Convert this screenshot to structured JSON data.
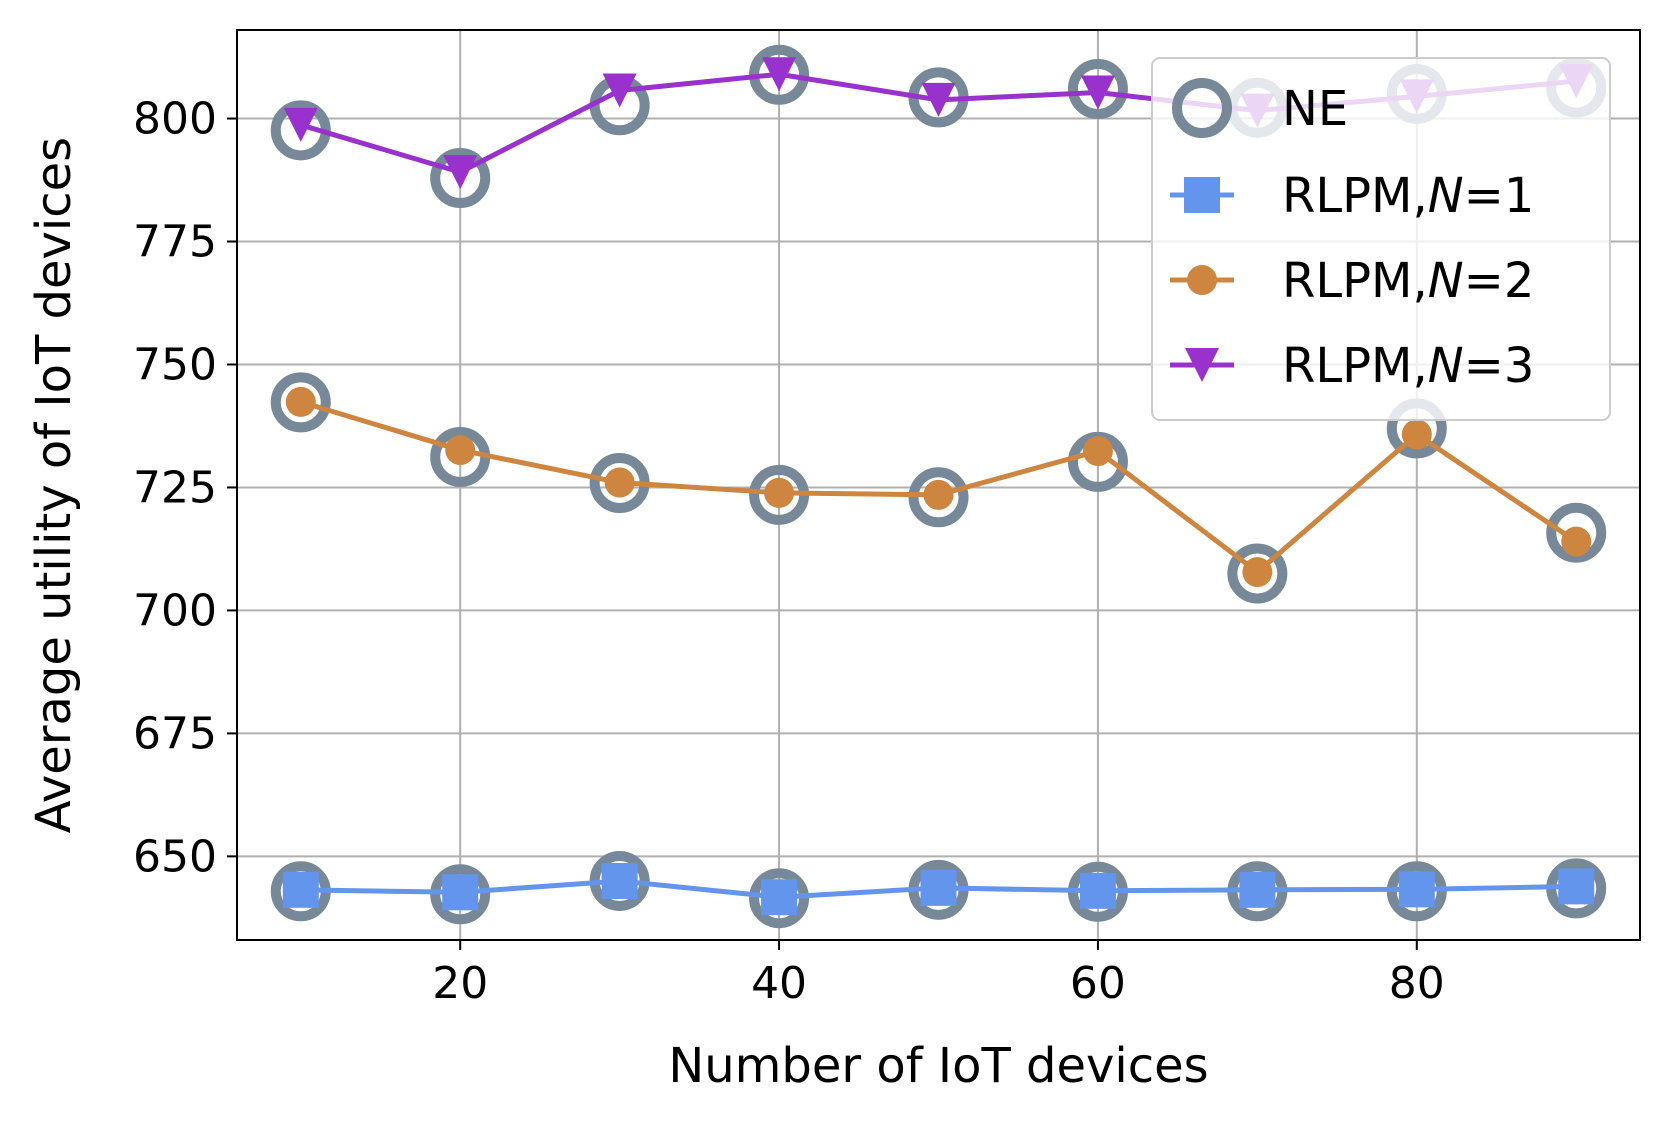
{
  "chart_data": {
    "type": "line",
    "xlabel": "Number of IoT devices",
    "ylabel": "Average utility of IoT devices",
    "xlim": [
      6,
      94
    ],
    "ylim": [
      633,
      818
    ],
    "xticks": [
      20,
      40,
      60,
      80
    ],
    "yticks": [
      650,
      675,
      700,
      725,
      750,
      775,
      800
    ],
    "grid": true,
    "legend_position": "upper right",
    "x": [
      10,
      20,
      30,
      40,
      50,
      60,
      70,
      80,
      90
    ],
    "series": [
      {
        "name": "NE",
        "marker": "hollow-circle",
        "line": false,
        "color": "#778899",
        "groups": [
          [
            642.9,
            642.3,
            645.0,
            641.5,
            643.2,
            642.8,
            642.9,
            642.9,
            643.5
          ],
          [
            742.3,
            731.2,
            725.9,
            723.5,
            723.0,
            730.2,
            707.5,
            737.0,
            715.8
          ],
          [
            797.6,
            787.9,
            802.7,
            808.9,
            804.3,
            806.0,
            802.2,
            805.0,
            806.3
          ]
        ]
      },
      {
        "name": "RLPM,N=1",
        "legend_prefix": "RLPM,",
        "legend_var": "N",
        "legend_suffix": "=1",
        "marker": "square",
        "color": "#6495ED",
        "values": [
          643.2,
          642.7,
          645.0,
          641.7,
          643.6,
          643.0,
          643.2,
          643.3,
          643.9
        ]
      },
      {
        "name": "RLPM,N=2",
        "legend_prefix": "RLPM,",
        "legend_var": "N",
        "legend_suffix": "=2",
        "marker": "circle",
        "color": "#CD853F",
        "values": [
          742.4,
          732.6,
          726.0,
          723.9,
          723.5,
          732.4,
          707.8,
          735.8,
          714.0
        ]
      },
      {
        "name": "RLPM,N=3",
        "legend_prefix": "RLPM,",
        "legend_var": "N",
        "legend_suffix": "=3",
        "marker": "triangle-down",
        "color": "#9932CC",
        "values": [
          798.7,
          789.1,
          805.7,
          809.0,
          803.8,
          805.3,
          801.6,
          804.5,
          807.6
        ]
      }
    ]
  },
  "colors": {
    "grid": "#b0b0b0",
    "axis": "#000000",
    "legend_border": "#cccccc"
  }
}
